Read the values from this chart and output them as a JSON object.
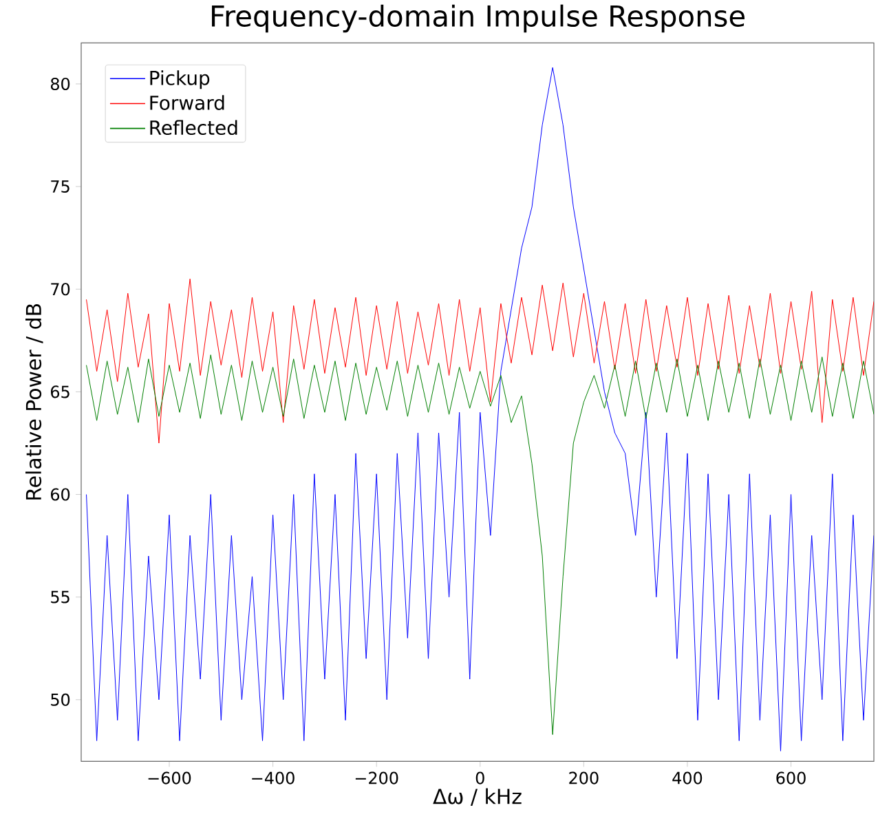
{
  "chart_data": {
    "type": "line",
    "title": "Frequency-domain Impulse Response",
    "xlabel": "Δω / kHz",
    "ylabel": "Relative Power / dB",
    "x": [
      -760,
      -740,
      -720,
      -700,
      -680,
      -660,
      -640,
      -620,
      -600,
      -580,
      -560,
      -540,
      -520,
      -500,
      -480,
      -460,
      -440,
      -420,
      -400,
      -380,
      -360,
      -340,
      -320,
      -300,
      -280,
      -260,
      -240,
      -220,
      -200,
      -180,
      -160,
      -140,
      -120,
      -100,
      -80,
      -60,
      -40,
      -20,
      0,
      20,
      40,
      60,
      80,
      100,
      120,
      140,
      160,
      180,
      200,
      220,
      240,
      260,
      280,
      300,
      320,
      340,
      360,
      380,
      400,
      420,
      440,
      460,
      480,
      500,
      520,
      540,
      560,
      580,
      600,
      620,
      640,
      660,
      680,
      700,
      720,
      740,
      760
    ],
    "series": [
      {
        "name": "Pickup",
        "color": "#0000ff",
        "values": [
          60,
          48,
          58,
          49,
          60,
          48,
          57,
          50,
          59,
          48,
          58,
          51,
          60,
          49,
          58,
          50,
          56,
          48,
          59,
          50,
          60,
          48,
          61,
          51,
          60,
          49,
          62,
          52,
          61,
          50,
          62,
          53,
          63,
          52,
          63,
          55,
          64,
          51,
          64,
          58,
          66,
          69,
          72,
          74,
          78,
          80.8,
          78,
          74,
          71,
          68,
          65,
          63,
          62,
          58,
          64,
          55,
          63,
          52,
          62,
          49,
          61,
          50,
          60,
          48,
          61,
          49,
          59,
          47.5,
          60,
          48,
          58,
          50,
          61,
          48,
          59,
          49,
          58
        ]
      },
      {
        "name": "Forward",
        "color": "#ff0000",
        "values": [
          69.5,
          66,
          69,
          65.5,
          69.8,
          66.2,
          68.8,
          62.5,
          69.3,
          66,
          70.5,
          65.8,
          69.4,
          66.3,
          69,
          65.7,
          69.6,
          66,
          68.9,
          63.5,
          69.2,
          66.1,
          69.5,
          65.9,
          69.1,
          66.2,
          69.6,
          65.8,
          69.2,
          66.1,
          69.4,
          65.9,
          68.9,
          66.3,
          69.3,
          65.8,
          69.5,
          66,
          69.1,
          64.5,
          69.3,
          66.4,
          69.6,
          66.8,
          70.2,
          67,
          70.3,
          66.7,
          69.8,
          66.4,
          69.4,
          66.1,
          69.3,
          65.9,
          69.5,
          66,
          69.2,
          66.2,
          69.6,
          65.8,
          69.3,
          66.1,
          69.7,
          65.9,
          69.2,
          66.2,
          69.8,
          65.9,
          69.4,
          66.1,
          69.9,
          63.5,
          69.5,
          66,
          69.6,
          65.8,
          69.4
        ]
      },
      {
        "name": "Reflected",
        "color": "#008000",
        "values": [
          66.3,
          63.6,
          66.5,
          63.9,
          66.2,
          63.5,
          66.6,
          63.8,
          66.3,
          64,
          66.4,
          63.7,
          66.8,
          63.9,
          66.3,
          63.6,
          66.5,
          64,
          66.2,
          63.8,
          66.6,
          63.7,
          66.3,
          64,
          66.5,
          63.6,
          66.4,
          63.9,
          66.2,
          64.1,
          66.5,
          63.8,
          66.3,
          64,
          66.4,
          63.9,
          66.2,
          64.2,
          66,
          64.3,
          65.8,
          63.5,
          64.8,
          61.5,
          57,
          48.3,
          56,
          62.5,
          64.5,
          65.8,
          64.2,
          66.3,
          63.8,
          66.5,
          63.7,
          66.4,
          64,
          66.6,
          63.8,
          66.3,
          63.6,
          66.5,
          64,
          66.4,
          63.7,
          66.6,
          63.9,
          66.3,
          63.6,
          66.5,
          64,
          66.7,
          63.8,
          66.4,
          63.7,
          66.5,
          63.9
        ]
      }
    ],
    "xlim": [
      -770,
      760
    ],
    "ylim": [
      47,
      82
    ],
    "xticks": [
      {
        "value": -600,
        "label": "−600"
      },
      {
        "value": -400,
        "label": "−400"
      },
      {
        "value": -200,
        "label": "−200"
      },
      0,
      200,
      400,
      600
    ],
    "yticks": [
      50,
      55,
      60,
      65,
      70,
      75,
      80
    ],
    "legend": "top left",
    "line_style": "solid",
    "marker": "none"
  }
}
